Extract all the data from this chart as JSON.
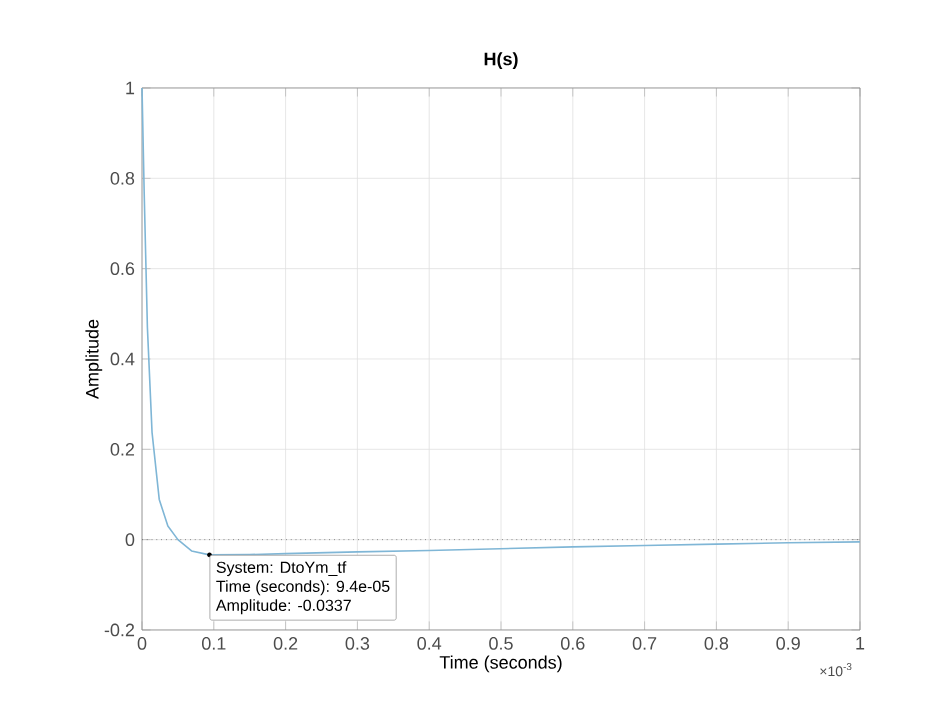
{
  "chart_data": {
    "type": "line",
    "title": "H(s)",
    "xlabel": "Time (seconds)",
    "ylabel": "Amplitude",
    "x": [
      0,
      0.003,
      0.0075,
      0.014,
      0.024,
      0.036,
      0.05,
      0.069,
      0.094,
      0.15,
      0.2,
      0.3,
      0.4,
      0.5,
      0.6,
      0.7,
      0.8,
      0.9,
      1.0
    ],
    "series": [
      {
        "color": "#7fb6d6",
        "values": [
          1,
          0.77,
          0.47,
          0.237,
          0.089,
          0.03,
          0,
          -0.025,
          -0.0337,
          -0.033,
          -0.031,
          -0.027,
          -0.024,
          -0.02,
          -0.016,
          -0.013,
          -0.01,
          -0.007,
          -0.005
        ]
      }
    ],
    "xlim": [
      0,
      1
    ],
    "ylim": [
      -0.2,
      1
    ],
    "xticks": [
      0,
      0.1,
      0.2,
      0.3,
      0.4,
      0.5,
      0.6,
      0.7,
      0.8,
      0.9,
      1
    ],
    "yticks": [
      -0.2,
      0,
      0.2,
      0.4,
      0.6,
      0.8,
      1
    ],
    "grid": true,
    "marker": "none",
    "line_style": "solid",
    "ref_lines": [
      {
        "axis": "y",
        "value": 0,
        "color": "#555555",
        "line_style": "dotted"
      }
    ],
    "annotations": [
      {
        "text": "System: DtoYm_tf",
        "x": 0.094,
        "y": -0.0337
      },
      "Time (seconds): 9.4e-05",
      "Amplitude: -0.0337",
      "×10$^{-3}$"
    ]
  }
}
